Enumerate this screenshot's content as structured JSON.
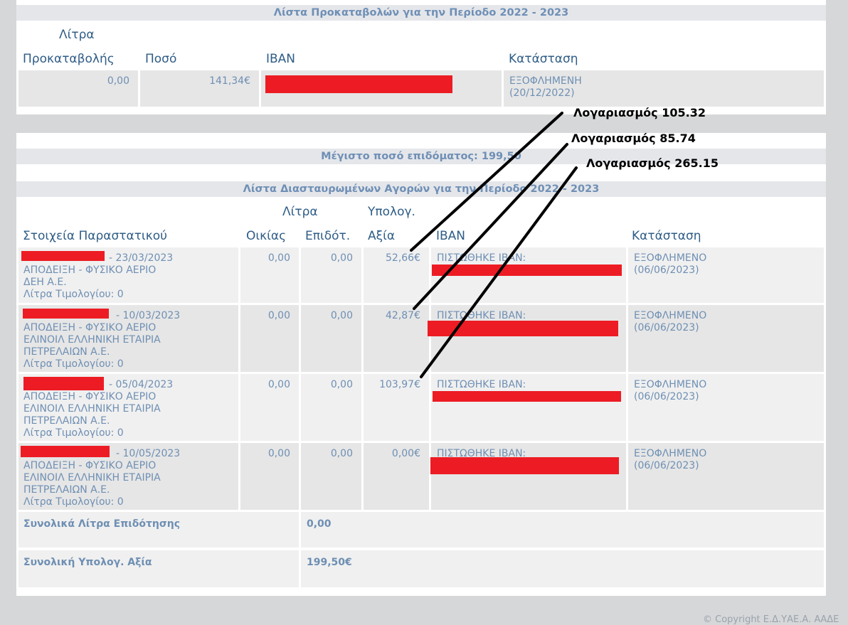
{
  "advances": {
    "title": "Λίστα Προκαταβολών για την Περίοδο 2022 - 2023",
    "headers": {
      "litra": "Λίτρα",
      "prokataboli": "Προκαταβολής",
      "poso": "Ποσό",
      "iban": "IBAN",
      "katastasi": "Κατάσταση"
    },
    "row": {
      "litra": "0,00",
      "poso": "141,34€",
      "status_line1": "ΕΞΟΦΛΗΜΕΝΗ",
      "status_line2": "(20/12/2022)"
    }
  },
  "purchases": {
    "max_amount": "Μέγιστο ποσό επιδόματος: 199,50",
    "title": "Λίστα Διασταυρωμένων Αγορών για την Περίοδο 2022 - 2023",
    "headers": {
      "stoixeia": "Στοιχεία Παραστατικού",
      "litra_top": "Λίτρα",
      "oikias": "Οικίας",
      "epidot": "Επιδότ.",
      "ypolog_top": "Υπολογ.",
      "axia": "Αξία",
      "iban": "IBAN",
      "katastasi": "Κατάσταση"
    },
    "rows": [
      {
        "date": "- 23/03/2023",
        "line2": "ΑΠΟΔΕΙΞΗ - ΦΥΣΙΚΟ ΑΕΡΙΟ",
        "line3": "ΔΕΗ Α.Ε.",
        "line4": "",
        "litra_label": "Λίτρα Τιμολογίου: 0",
        "oikias": "0,00",
        "epidot": "0,00",
        "axia": "52,66€",
        "iban_label": "ΠΙΣΤΩΘΗΚΕ IBAN:",
        "status1": "ΕΞΟΦΛΗΜΕΝΟ",
        "status2": "(06/06/2023)"
      },
      {
        "date": "- 10/03/2023",
        "line2": "ΑΠΟΔΕΙΞΗ - ΦΥΣΙΚΟ ΑΕΡΙΟ",
        "line3": "ΕΛΙΝΟΙΛ ΕΛΛΗΝΙΚΗ ΕΤΑΙΡΙΑ",
        "line4": "ΠΕΤΡΕΛΑΙΩΝ Α.Ε.",
        "litra_label": "Λίτρα Τιμολογίου: 0",
        "oikias": "0,00",
        "epidot": "0,00",
        "axia": "42,87€",
        "iban_label": "ΠΙΣΤΩΘΗΚΕ IBAN:",
        "status1": "ΕΞΟΦΛΗΜΕΝΟ",
        "status2": "(06/06/2023)"
      },
      {
        "date": "- 05/04/2023",
        "line2": "ΑΠΟΔΕΙΞΗ - ΦΥΣΙΚΟ ΑΕΡΙΟ",
        "line3": "ΕΛΙΝΟΙΛ ΕΛΛΗΝΙΚΗ ΕΤΑΙΡΙΑ",
        "line4": "ΠΕΤΡΕΛΑΙΩΝ Α.Ε.",
        "litra_label": "Λίτρα Τιμολογίου: 0",
        "oikias": "0,00",
        "epidot": "0,00",
        "axia": "103,97€",
        "iban_label": "ΠΙΣΤΩΘΗΚΕ IBAN:",
        "status1": "ΕΞΟΦΛΗΜΕΝΟ",
        "status2": "(06/06/2023)"
      },
      {
        "date": "- 10/05/2023",
        "line2": "ΑΠΟΔΕΙΞΗ - ΦΥΣΙΚΟ ΑΕΡΙΟ",
        "line3": "ΕΛΙΝΟΙΛ ΕΛΛΗΝΙΚΗ ΕΤΑΙΡΙΑ",
        "line4": "ΠΕΤΡΕΛΑΙΩΝ Α.Ε.",
        "litra_label": "Λίτρα Τιμολογίου: 0",
        "oikias": "0,00",
        "epidot": "0,00",
        "axia": "0,00€",
        "iban_label": "ΠΙΣΤΩΘΗΚΕ IBAN:",
        "status1": "ΕΞΟΦΛΗΜΕΝΟ",
        "status2": "(06/06/2023)"
      }
    ],
    "totals": {
      "litra_label": "Συνολικά Λίτρα Επιδότησης",
      "litra_value": "0,00",
      "axia_label": "Συνολική Υπολογ. Αξία",
      "axia_value": "199,50€"
    }
  },
  "annotations": [
    "Λογαριασμός 105.32",
    "Λογαριασμός 85.74",
    "Λογαριασμός 265.15"
  ],
  "footer": {
    "copyright": "© Copyright Ε.Δ.ΥΑΕ.Α. ΑΑΔΕ"
  },
  "colors": {
    "redaction": "#ed1c24",
    "text": "#6e8fb3",
    "header_text": "#2e5c86"
  }
}
